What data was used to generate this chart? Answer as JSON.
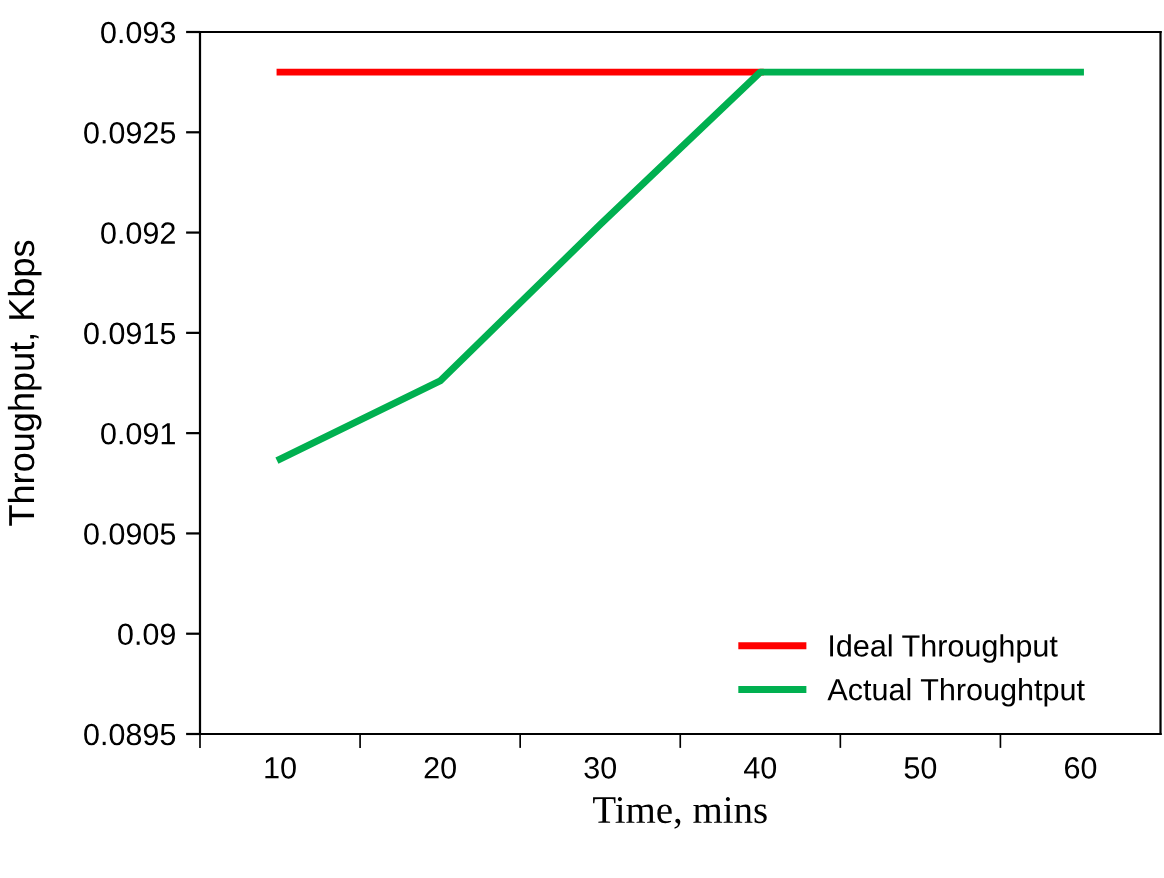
{
  "chart_data": {
    "type": "line",
    "xlabel": "Time, mins",
    "ylabel": "Throughput, Kbps",
    "categories": [
      "10",
      "20",
      "30",
      "40",
      "50",
      "60"
    ],
    "series": [
      {
        "name": "Ideal Throughput",
        "color": "#ff0000",
        "values": [
          0.0928,
          0.0928,
          0.0928,
          0.0928,
          null,
          null
        ]
      },
      {
        "name": "Actual Throughtput",
        "color": "#00b050",
        "values": [
          0.09087,
          0.09126,
          0.09204,
          0.0928,
          0.0928,
          0.0928
        ]
      }
    ],
    "ylim": [
      0.0895,
      0.093
    ],
    "yticks": [
      0.0895,
      0.09,
      0.0905,
      0.091,
      0.0915,
      0.092,
      0.0925,
      0.093
    ],
    "grid": false,
    "legend": "bottom right",
    "marker": "none",
    "line_style": "solid"
  }
}
